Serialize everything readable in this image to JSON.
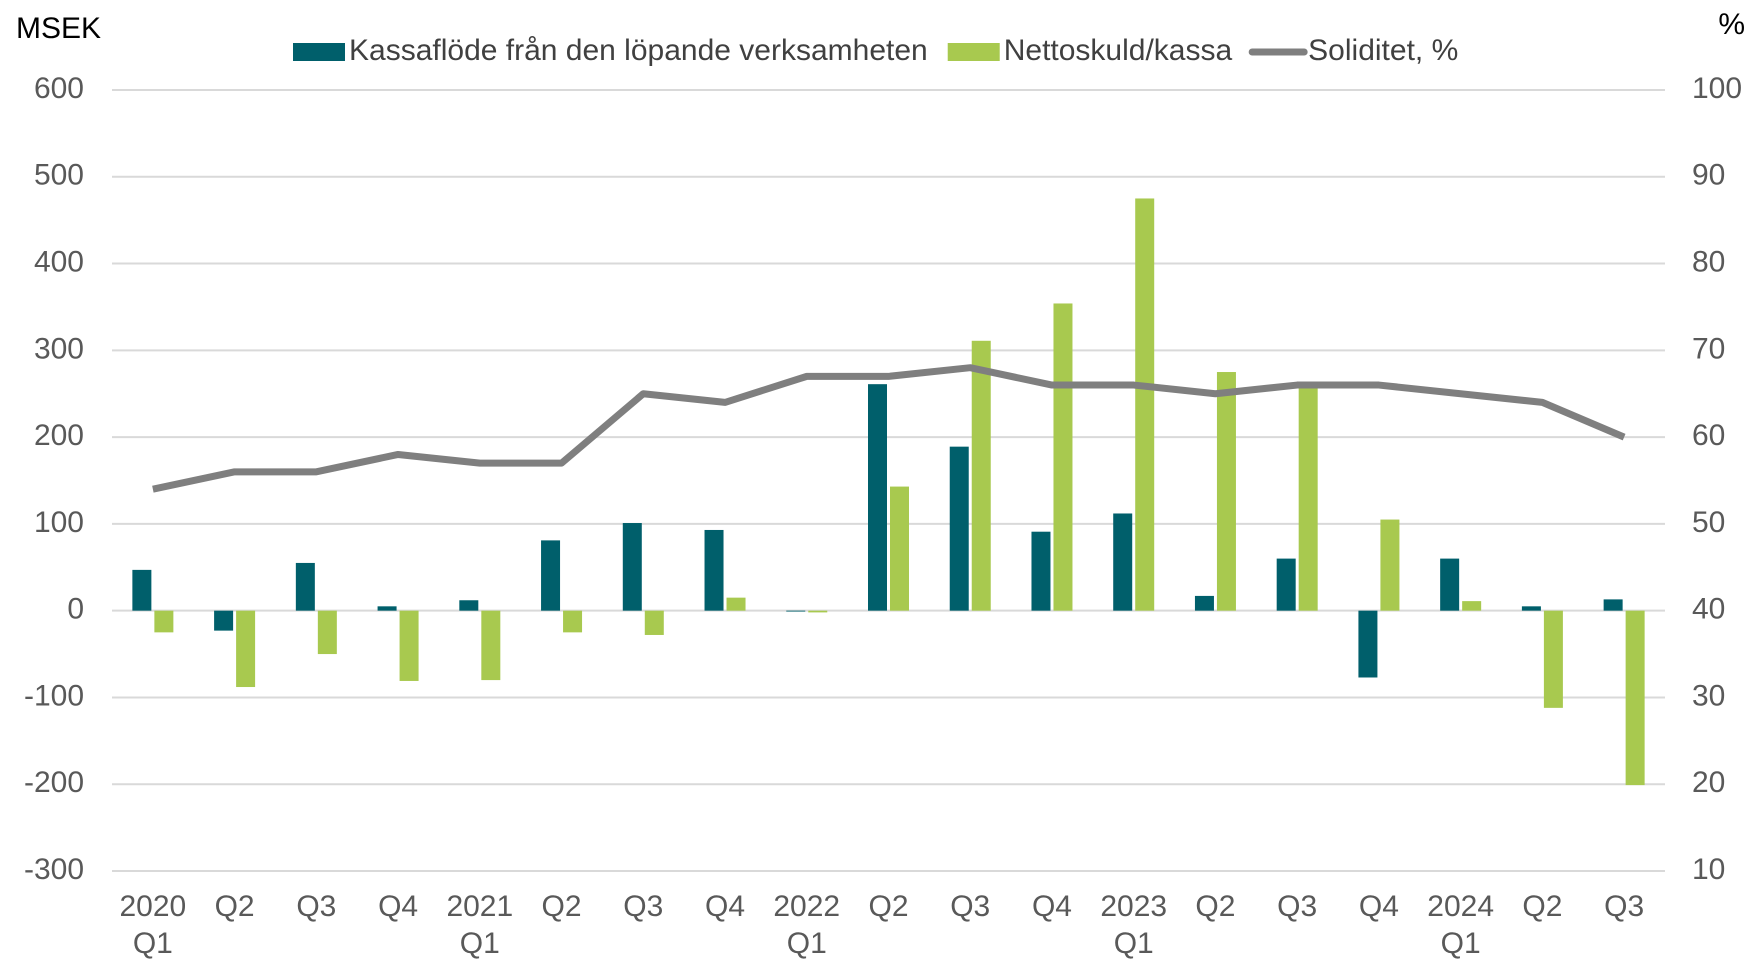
{
  "chart_data": {
    "type": "bar",
    "y_label": "MSEK",
    "y2_label": "%",
    "categories": [
      "2020\nQ1",
      "Q2",
      "Q3",
      "Q4",
      "2021\nQ1",
      "Q2",
      "Q3",
      "Q4",
      "2022\nQ1",
      "Q2",
      "Q3",
      "Q4",
      "2023\nQ1",
      "Q2",
      "Q3",
      "Q4",
      "2024\nQ1",
      "Q2",
      "Q3"
    ],
    "series": [
      {
        "name": "Kassaflöde från den löpande verksamheten",
        "type": "bar",
        "color": "#005f6b",
        "values": [
          47,
          -23,
          55,
          5,
          12,
          81,
          101,
          93,
          -1,
          261,
          189,
          91,
          112,
          17,
          60,
          -77,
          60,
          5,
          13
        ]
      },
      {
        "name": "Nettoskuld/kassa",
        "type": "bar",
        "color": "#a8c94f",
        "values": [
          -25,
          -88,
          -50,
          -81,
          -80,
          -25,
          -28,
          15,
          -2,
          143,
          311,
          354,
          475,
          275,
          263,
          105,
          11,
          -112,
          -201
        ]
      },
      {
        "name": "Soliditet, %",
        "type": "line",
        "axis": "y2",
        "color": "#7f7f7f",
        "values": [
          54,
          56,
          56,
          58,
          57,
          57,
          65,
          64,
          67,
          67,
          68,
          66,
          66,
          65,
          66,
          66,
          65,
          64,
          60
        ]
      }
    ],
    "ylim": [
      -300,
      600
    ],
    "yticks": [
      -300,
      -200,
      -100,
      0,
      100,
      200,
      300,
      400,
      500,
      600
    ],
    "y2lim": [
      10,
      100
    ],
    "y2ticks": [
      10,
      20,
      30,
      40,
      50,
      60,
      70,
      80,
      90,
      100
    ],
    "grid": true,
    "legend": "top"
  }
}
